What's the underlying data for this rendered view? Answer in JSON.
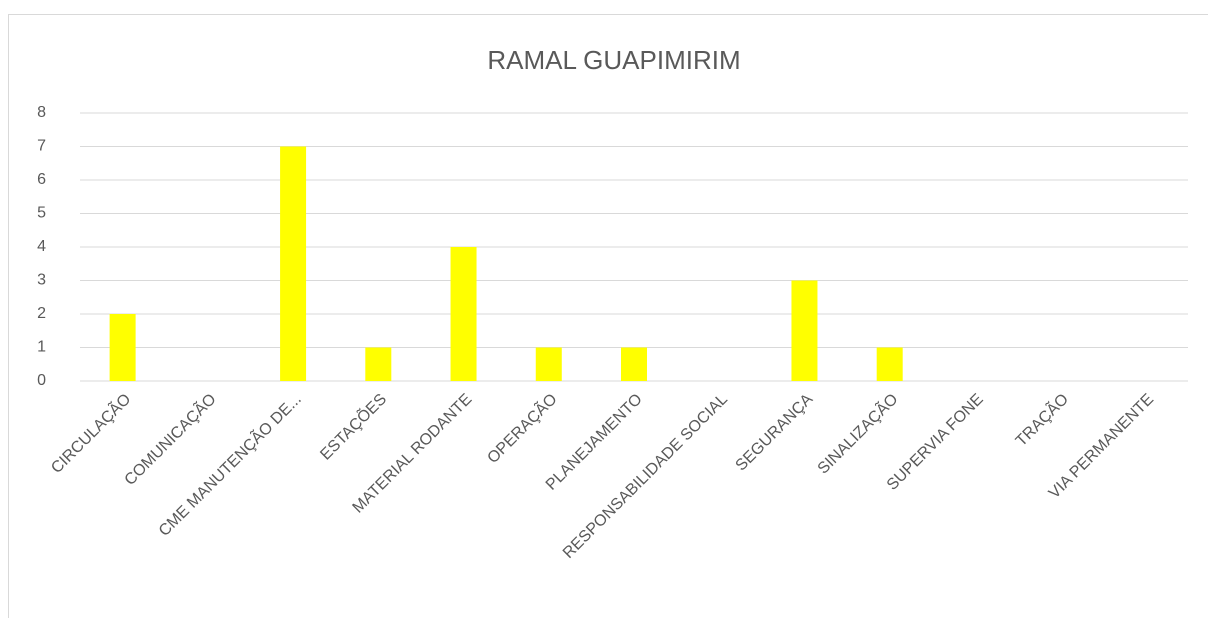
{
  "chart_data": {
    "type": "bar",
    "title": "RAMAL GUAPIMIRIM",
    "categories": [
      "CIRCULAÇÃO",
      "COMUNICAÇÃO",
      "CME MANUTENÇÃO DE...",
      "ESTAÇÕES",
      "MATERIAL RODANTE",
      "OPERAÇÃO",
      "PLANEJAMENTO",
      "RESPONSABILIDADE SOCIAL",
      "SEGURANÇA",
      "SINALIZAÇÃO",
      "SUPERVIA FONE",
      "TRAÇÃO",
      "VIA PERMANENTE"
    ],
    "values": [
      2,
      0,
      7,
      1,
      4,
      1,
      1,
      0,
      3,
      1,
      0,
      0,
      0
    ],
    "color": "#ffff00",
    "ylim": [
      0,
      8
    ],
    "yticks": [
      0,
      1,
      2,
      3,
      4,
      5,
      6,
      7,
      8
    ],
    "grid": true
  }
}
